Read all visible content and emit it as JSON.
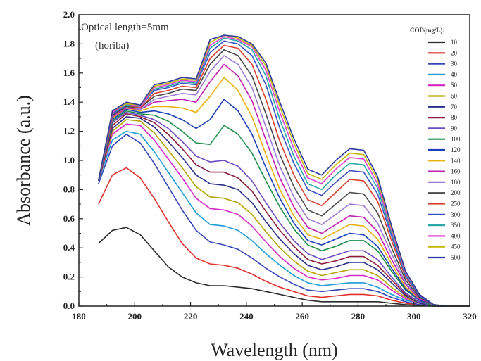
{
  "chart_data": {
    "type": "line",
    "xlabel": "Wavelength (nm)",
    "ylabel": "Absorbance (a.u.)",
    "xlim": [
      180,
      320
    ],
    "ylim": [
      0.0,
      2.0
    ],
    "xticks": [
      "180",
      "200",
      "220",
      "240",
      "260",
      "280",
      "300",
      "320"
    ],
    "yticks": [
      "0.0",
      "0.2",
      "0.4",
      "0.6",
      "0.8",
      "1.0",
      "1.2",
      "1.4",
      "1.6",
      "1.8",
      "2.0"
    ],
    "grid": false,
    "legend_title": "COD(mg/L):",
    "legend_placement": "right",
    "annotations": [
      "Optical length=5mm",
      "(horiba)"
    ],
    "x": [
      187,
      192,
      197,
      202,
      207,
      212,
      217,
      222,
      227,
      232,
      237,
      242,
      247,
      252,
      257,
      262,
      267,
      272,
      277,
      282,
      287,
      292,
      297,
      302,
      307,
      312,
      320
    ],
    "series": [
      {
        "name": "10",
        "color": "#2b2b2b",
        "values": [
          0.43,
          0.52,
          0.54,
          0.49,
          0.38,
          0.27,
          0.2,
          0.16,
          0.14,
          0.14,
          0.13,
          0.12,
          0.1,
          0.08,
          0.06,
          0.04,
          0.03,
          0.03,
          0.03,
          0.03,
          0.03,
          0.02,
          0.01,
          0.005,
          0.0,
          0.0,
          0.0
        ]
      },
      {
        "name": "20",
        "color": "#e0302a",
        "values": [
          0.7,
          0.9,
          0.95,
          0.88,
          0.74,
          0.58,
          0.43,
          0.33,
          0.29,
          0.28,
          0.26,
          0.22,
          0.17,
          0.13,
          0.1,
          0.07,
          0.06,
          0.07,
          0.08,
          0.08,
          0.07,
          0.04,
          0.02,
          0.01,
          0.0,
          0.0,
          0.0
        ]
      },
      {
        "name": "30",
        "color": "#3548b8",
        "values": [
          0.84,
          1.1,
          1.18,
          1.12,
          0.98,
          0.82,
          0.66,
          0.52,
          0.44,
          0.42,
          0.39,
          0.33,
          0.26,
          0.2,
          0.15,
          0.11,
          0.1,
          0.11,
          0.12,
          0.12,
          0.1,
          0.06,
          0.03,
          0.01,
          0.0,
          0.0,
          0.0
        ]
      },
      {
        "name": "40",
        "color": "#1e9bd6",
        "values": [
          0.86,
          1.14,
          1.2,
          1.18,
          1.06,
          0.92,
          0.78,
          0.64,
          0.56,
          0.55,
          0.52,
          0.45,
          0.36,
          0.28,
          0.21,
          0.16,
          0.14,
          0.15,
          0.16,
          0.16,
          0.13,
          0.08,
          0.04,
          0.02,
          0.0,
          0.0,
          0.0
        ]
      },
      {
        "name": "50",
        "color": "#d426c6",
        "values": [
          0.86,
          1.18,
          1.25,
          1.24,
          1.14,
          1.01,
          0.88,
          0.74,
          0.67,
          0.66,
          0.63,
          0.55,
          0.44,
          0.34,
          0.26,
          0.2,
          0.18,
          0.19,
          0.21,
          0.21,
          0.18,
          0.11,
          0.05,
          0.02,
          0.0,
          0.0,
          0.0
        ]
      },
      {
        "name": "60",
        "color": "#b5a300",
        "values": [
          0.86,
          1.2,
          1.28,
          1.27,
          1.19,
          1.07,
          0.95,
          0.82,
          0.75,
          0.74,
          0.71,
          0.63,
          0.51,
          0.4,
          0.31,
          0.24,
          0.21,
          0.23,
          0.25,
          0.25,
          0.21,
          0.13,
          0.06,
          0.02,
          0.0,
          0.0,
          0.0
        ]
      },
      {
        "name": "70",
        "color": "#2a2f8a",
        "values": [
          0.86,
          1.22,
          1.3,
          1.29,
          1.23,
          1.13,
          1.02,
          0.9,
          0.84,
          0.83,
          0.8,
          0.71,
          0.58,
          0.46,
          0.36,
          0.28,
          0.25,
          0.27,
          0.3,
          0.3,
          0.25,
          0.16,
          0.07,
          0.02,
          0.0,
          0.0,
          0.0
        ]
      },
      {
        "name": "80",
        "color": "#8b1c3b",
        "values": [
          0.86,
          1.24,
          1.32,
          1.3,
          1.26,
          1.18,
          1.08,
          0.97,
          0.92,
          0.92,
          0.88,
          0.79,
          0.65,
          0.52,
          0.41,
          0.32,
          0.29,
          0.31,
          0.34,
          0.34,
          0.28,
          0.18,
          0.08,
          0.03,
          0.0,
          0.0,
          0.0
        ]
      },
      {
        "name": "90",
        "color": "#6b4ac2",
        "values": [
          0.86,
          1.26,
          1.33,
          1.31,
          1.28,
          1.22,
          1.13,
          1.03,
          0.99,
          1.0,
          0.96,
          0.86,
          0.71,
          0.57,
          0.45,
          0.36,
          0.32,
          0.35,
          0.38,
          0.38,
          0.32,
          0.2,
          0.09,
          0.03,
          0.0,
          0.0,
          0.0
        ]
      },
      {
        "name": "100",
        "color": "#1f8f4a",
        "values": [
          0.86,
          1.27,
          1.34,
          1.32,
          1.31,
          1.27,
          1.2,
          1.12,
          1.11,
          1.24,
          1.18,
          1.05,
          0.86,
          0.68,
          0.53,
          0.42,
          0.38,
          0.41,
          0.45,
          0.45,
          0.38,
          0.24,
          0.11,
          0.04,
          0.0,
          0.0,
          0.0
        ]
      },
      {
        "name": "120",
        "color": "#1b3fb5",
        "values": [
          0.86,
          1.28,
          1.35,
          1.33,
          1.34,
          1.32,
          1.28,
          1.22,
          1.28,
          1.42,
          1.34,
          1.18,
          0.95,
          0.74,
          0.57,
          0.45,
          0.42,
          0.46,
          0.5,
          0.49,
          0.41,
          0.26,
          0.12,
          0.04,
          0.01,
          0.0,
          0.0
        ]
      },
      {
        "name": "140",
        "color": "#e8b10a",
        "values": [
          0.86,
          1.29,
          1.36,
          1.34,
          1.37,
          1.37,
          1.36,
          1.33,
          1.44,
          1.57,
          1.48,
          1.3,
          1.04,
          0.8,
          0.62,
          0.49,
          0.46,
          0.51,
          0.56,
          0.55,
          0.46,
          0.29,
          0.13,
          0.05,
          0.01,
          0.0,
          0.0
        ]
      },
      {
        "name": "160",
        "color": "#c01fb0",
        "values": [
          0.86,
          1.3,
          1.36,
          1.35,
          1.4,
          1.41,
          1.42,
          1.4,
          1.54,
          1.66,
          1.58,
          1.41,
          1.14,
          0.88,
          0.68,
          0.54,
          0.5,
          0.56,
          0.62,
          0.61,
          0.51,
          0.32,
          0.15,
          0.05,
          0.01,
          0.0,
          0.0
        ]
      },
      {
        "name": "180",
        "color": "#9b7bd4",
        "values": [
          0.86,
          1.31,
          1.37,
          1.35,
          1.42,
          1.44,
          1.46,
          1.45,
          1.61,
          1.72,
          1.66,
          1.5,
          1.23,
          0.96,
          0.75,
          0.6,
          0.56,
          0.63,
          0.7,
          0.69,
          0.57,
          0.36,
          0.16,
          0.06,
          0.01,
          0.0,
          0.0
        ]
      },
      {
        "name": "200",
        "color": "#4a4a4a",
        "values": [
          0.86,
          1.31,
          1.37,
          1.36,
          1.44,
          1.46,
          1.49,
          1.48,
          1.66,
          1.76,
          1.72,
          1.58,
          1.32,
          1.04,
          0.82,
          0.66,
          0.62,
          0.7,
          0.78,
          0.77,
          0.64,
          0.4,
          0.18,
          0.06,
          0.01,
          0.0,
          0.0
        ]
      },
      {
        "name": "250",
        "color": "#d8402e",
        "values": [
          0.86,
          1.32,
          1.38,
          1.36,
          1.46,
          1.48,
          1.51,
          1.5,
          1.7,
          1.79,
          1.77,
          1.66,
          1.42,
          1.13,
          0.9,
          0.73,
          0.69,
          0.78,
          0.87,
          0.86,
          0.72,
          0.45,
          0.2,
          0.07,
          0.01,
          0.0,
          0.0
        ]
      },
      {
        "name": "300",
        "color": "#3b52c4",
        "values": [
          0.86,
          1.32,
          1.38,
          1.37,
          1.48,
          1.5,
          1.53,
          1.52,
          1.74,
          1.82,
          1.8,
          1.72,
          1.52,
          1.22,
          0.98,
          0.8,
          0.76,
          0.85,
          0.93,
          0.92,
          0.77,
          0.48,
          0.21,
          0.07,
          0.01,
          0.0,
          0.0
        ]
      },
      {
        "name": "350",
        "color": "#2aa7a7",
        "values": [
          0.86,
          1.33,
          1.38,
          1.37,
          1.49,
          1.51,
          1.54,
          1.53,
          1.77,
          1.84,
          1.82,
          1.76,
          1.58,
          1.28,
          1.03,
          0.84,
          0.8,
          0.9,
          0.98,
          0.97,
          0.81,
          0.5,
          0.22,
          0.08,
          0.01,
          0.0,
          0.0
        ]
      },
      {
        "name": "400",
        "color": "#e040d0",
        "values": [
          0.86,
          1.33,
          1.39,
          1.37,
          1.5,
          1.52,
          1.55,
          1.54,
          1.79,
          1.85,
          1.83,
          1.78,
          1.62,
          1.33,
          1.08,
          0.88,
          0.84,
          0.94,
          1.02,
          1.01,
          0.84,
          0.52,
          0.23,
          0.08,
          0.01,
          0.0,
          0.0
        ]
      },
      {
        "name": "450",
        "color": "#c2b800",
        "values": [
          0.86,
          1.34,
          1.39,
          1.38,
          1.51,
          1.53,
          1.56,
          1.55,
          1.81,
          1.86,
          1.84,
          1.79,
          1.65,
          1.37,
          1.12,
          0.91,
          0.87,
          0.97,
          1.05,
          1.04,
          0.87,
          0.54,
          0.24,
          0.08,
          0.01,
          0.0,
          0.0
        ]
      },
      {
        "name": "500",
        "color": "#2c3aa0",
        "values": [
          0.86,
          1.34,
          1.4,
          1.38,
          1.52,
          1.54,
          1.57,
          1.56,
          1.83,
          1.86,
          1.85,
          1.8,
          1.67,
          1.4,
          1.15,
          0.94,
          0.9,
          1.0,
          1.08,
          1.07,
          0.89,
          0.55,
          0.24,
          0.08,
          0.01,
          0.0,
          0.0
        ]
      }
    ]
  }
}
